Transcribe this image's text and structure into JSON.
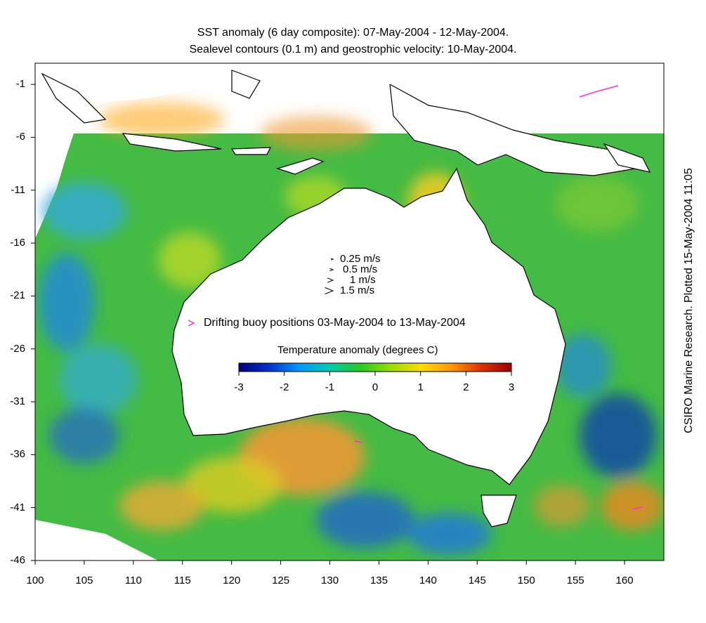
{
  "title": {
    "line1": "SST anomaly (6 day composite): 07-May-2004 - 12-May-2004.",
    "line2": "Sealevel contours (0.1 m) and geostrophic velocity: 10-May-2004."
  },
  "credit": "CSIRO Marine Research. Plotted 15-May-2004 11:05",
  "axes": {
    "lon_ticks": [
      "100",
      "105",
      "110",
      "115",
      "120",
      "125",
      "130",
      "135",
      "140",
      "145",
      "150",
      "155",
      "160"
    ],
    "lat_ticks": [
      "-1",
      "-6",
      "-11",
      "-16",
      "-21",
      "-26",
      "-31",
      "-36",
      "-41",
      "-46"
    ],
    "lon_range": [
      100,
      164
    ],
    "lat_range": [
      -46,
      1
    ]
  },
  "velocity_legend": [
    {
      "label": "0.25 m/s",
      "speed": 0.25
    },
    {
      "label": "0.5 m/s",
      "speed": 0.5
    },
    {
      "label": "1 m/s",
      "speed": 1
    },
    {
      "label": "1.5 m/s",
      "speed": 1.5
    }
  ],
  "buoy_legend": {
    "label": "Drifting buoy positions 03-May-2004 to 13-May-2004",
    "color": "#ff33cc"
  },
  "colorbar": {
    "title": "Temperature anomaly (degrees C)",
    "labels": [
      "-3",
      "-2",
      "-1",
      "0",
      "1",
      "2",
      "3"
    ],
    "range": [
      -3,
      3
    ],
    "colors": [
      "#000080",
      "#0033cc",
      "#0099ff",
      "#00ccaa",
      "#22cc22",
      "#99dd00",
      "#ffdd00",
      "#ff9900",
      "#dd3300",
      "#990000"
    ]
  },
  "colors": {
    "ocean_base": "#44bb44",
    "land": "#ffffff",
    "coastline": "#000000"
  }
}
